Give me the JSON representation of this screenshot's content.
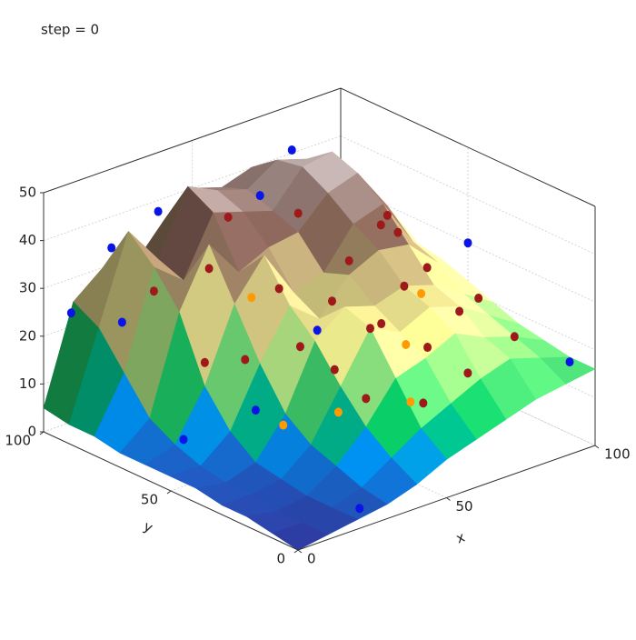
{
  "chart_data": {
    "type": "surface3d",
    "title": "step = 0",
    "xlabel": "x",
    "ylabel": "y",
    "xlim": [
      0,
      100
    ],
    "ylim": [
      0,
      100
    ],
    "zlim": [
      0,
      50
    ],
    "xticks": [
      0,
      50,
      100
    ],
    "yticks": [
      0,
      50,
      100
    ],
    "zticks": [
      0,
      10,
      20,
      30,
      40,
      50
    ],
    "grid": true,
    "surface": {
      "x": [
        0,
        10,
        20,
        30,
        40,
        50,
        60,
        70,
        80,
        90,
        100
      ],
      "y": [
        0,
        10,
        20,
        30,
        40,
        50,
        60,
        70,
        80,
        90,
        100
      ],
      "z": [
        [
          0,
          1,
          2,
          3,
          5,
          8,
          10,
          12,
          14,
          15,
          16
        ],
        [
          1,
          1,
          2,
          4,
          8,
          12,
          15,
          18,
          20,
          18,
          16
        ],
        [
          2,
          1,
          2,
          6,
          12,
          20,
          22,
          25,
          22,
          20,
          17
        ],
        [
          2,
          2,
          3,
          8,
          18,
          28,
          25,
          28,
          26,
          22,
          18
        ],
        [
          3,
          2,
          4,
          12,
          25,
          30,
          28,
          30,
          28,
          24,
          20
        ],
        [
          3,
          3,
          8,
          20,
          30,
          25,
          32,
          35,
          34,
          28,
          22
        ],
        [
          3,
          5,
          15,
          30,
          38,
          28,
          30,
          38,
          40,
          30,
          24
        ],
        [
          3,
          8,
          28,
          40,
          32,
          35,
          36,
          42,
          44,
          35,
          25
        ],
        [
          4,
          15,
          35,
          30,
          42,
          40,
          38,
          45,
          46,
          38,
          28
        ],
        [
          4,
          22,
          40,
          32,
          45,
          42,
          40,
          44,
          42,
          36,
          30
        ],
        [
          5,
          25,
          30,
          28,
          35,
          40,
          38,
          40,
          38,
          34,
          30
        ]
      ]
    },
    "series": [
      {
        "color": "#9e1a1a",
        "x": [
          20,
          35,
          50,
          60,
          70,
          80,
          90,
          40,
          55,
          65,
          75,
          85,
          30,
          45,
          25,
          60,
          95,
          50,
          38,
          70,
          82,
          20,
          58,
          45,
          90
        ],
        "y": [
          60,
          40,
          30,
          50,
          40,
          30,
          20,
          20,
          15,
          25,
          55,
          60,
          70,
          60,
          50,
          70,
          40,
          45,
          30,
          15,
          45,
          80,
          35,
          80,
          70
        ],
        "z": [
          20,
          25,
          28,
          35,
          30,
          25,
          20,
          18,
          15,
          22,
          38,
          33,
          35,
          30,
          22,
          40,
          22,
          30,
          22,
          18,
          30,
          30,
          26,
          40,
          33
        ]
      },
      {
        "color": "#ff9a00",
        "x": [
          35,
          62,
          25,
          80,
          40,
          55
        ],
        "y": [
          25,
          30,
          35,
          45,
          65,
          20
        ],
        "z": [
          15,
          22,
          12,
          25,
          28,
          14
        ]
      },
      {
        "color": "#0a14e6",
        "x": [
          5,
          5,
          10,
          30,
          20,
          0,
          25,
          75,
          60,
          100,
          100,
          45
        ],
        "y": [
          95,
          75,
          85,
          90,
          40,
          45,
          5,
          90,
          85,
          50,
          10,
          45
        ],
        "z": [
          25,
          28,
          40,
          42,
          15,
          12,
          2,
          45,
          40,
          30,
          15,
          25
        ]
      }
    ]
  }
}
